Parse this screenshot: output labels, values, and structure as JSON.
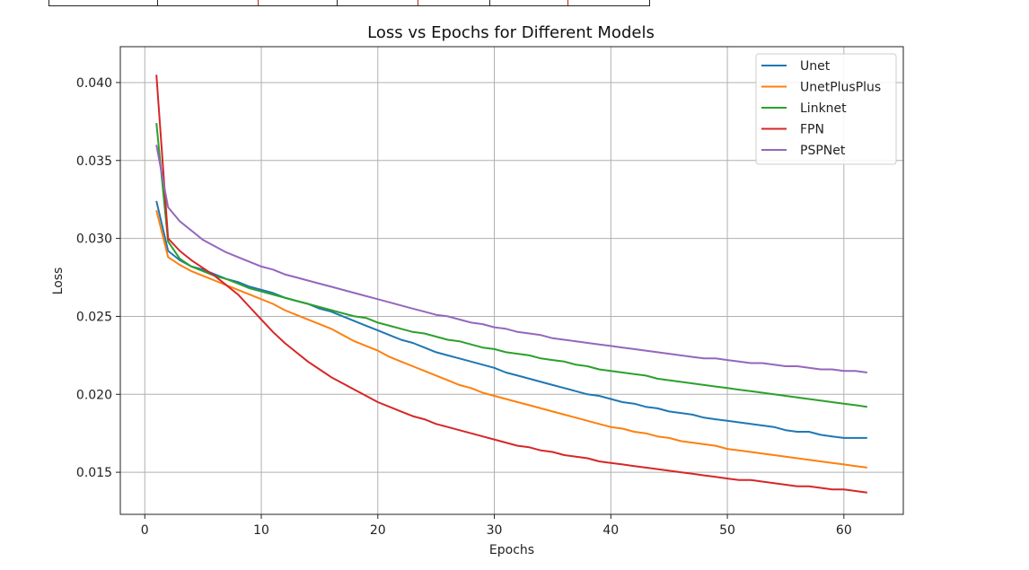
{
  "top_strip": {
    "cell_colors": [
      "#222222",
      "#222222",
      "#b22222",
      "#222222",
      "#b22222",
      "#222222",
      "#b22222"
    ]
  },
  "chart_data": {
    "type": "line",
    "title": "Loss vs Epochs for Different Models",
    "xlabel": "Epochs",
    "ylabel": "Loss",
    "xlim": [
      -2.1,
      65.1
    ],
    "ylim": [
      0.0123,
      0.0423
    ],
    "xticks": [
      0,
      10,
      20,
      30,
      40,
      50,
      60
    ],
    "yticks": [
      0.015,
      0.02,
      0.025,
      0.03,
      0.035,
      0.04
    ],
    "ytick_labels": [
      "0.015",
      "0.020",
      "0.025",
      "0.030",
      "0.035",
      "0.040"
    ],
    "grid": true,
    "legend_position": "top-right",
    "x": [
      1,
      2,
      3,
      4,
      5,
      6,
      7,
      8,
      9,
      10,
      11,
      12,
      13,
      14,
      15,
      16,
      17,
      18,
      19,
      20,
      21,
      22,
      23,
      24,
      25,
      26,
      27,
      28,
      29,
      30,
      31,
      32,
      33,
      34,
      35,
      36,
      37,
      38,
      39,
      40,
      41,
      42,
      43,
      44,
      45,
      46,
      47,
      48,
      49,
      50,
      51,
      52,
      53,
      54,
      55,
      56,
      57,
      58,
      59,
      60,
      61,
      62
    ],
    "series": [
      {
        "name": "Unet",
        "color": "#1f77b4",
        "values": [
          0.0324,
          0.0292,
          0.0286,
          0.0282,
          0.028,
          0.0277,
          0.0274,
          0.0272,
          0.0269,
          0.0267,
          0.0265,
          0.0262,
          0.026,
          0.0258,
          0.0255,
          0.0253,
          0.025,
          0.0247,
          0.0244,
          0.0241,
          0.0238,
          0.0235,
          0.0233,
          0.023,
          0.0227,
          0.0225,
          0.0223,
          0.0221,
          0.0219,
          0.0217,
          0.0214,
          0.0212,
          0.021,
          0.0208,
          0.0206,
          0.0204,
          0.0202,
          0.02,
          0.0199,
          0.0197,
          0.0195,
          0.0194,
          0.0192,
          0.0191,
          0.0189,
          0.0188,
          0.0187,
          0.0185,
          0.0184,
          0.0183,
          0.0182,
          0.0181,
          0.018,
          0.0179,
          0.0177,
          0.0176,
          0.0176,
          0.0174,
          0.0173,
          0.0172,
          0.0172,
          0.0172
        ]
      },
      {
        "name": "UnetPlusPlus",
        "color": "#ff7f0e",
        "values": [
          0.0318,
          0.0288,
          0.0283,
          0.0279,
          0.0276,
          0.0273,
          0.027,
          0.0267,
          0.0264,
          0.0261,
          0.0258,
          0.0254,
          0.0251,
          0.0248,
          0.0245,
          0.0242,
          0.0238,
          0.0234,
          0.0231,
          0.0228,
          0.0224,
          0.0221,
          0.0218,
          0.0215,
          0.0212,
          0.0209,
          0.0206,
          0.0204,
          0.0201,
          0.0199,
          0.0197,
          0.0195,
          0.0193,
          0.0191,
          0.0189,
          0.0187,
          0.0185,
          0.0183,
          0.0181,
          0.0179,
          0.0178,
          0.0176,
          0.0175,
          0.0173,
          0.0172,
          0.017,
          0.0169,
          0.0168,
          0.0167,
          0.0165,
          0.0164,
          0.0163,
          0.0162,
          0.0161,
          0.016,
          0.0159,
          0.0158,
          0.0157,
          0.0156,
          0.0155,
          0.0154,
          0.0153
        ]
      },
      {
        "name": "Linknet",
        "color": "#2ca02c",
        "values": [
          0.0374,
          0.0298,
          0.0287,
          0.0282,
          0.0279,
          0.0276,
          0.0274,
          0.0271,
          0.0268,
          0.0266,
          0.0264,
          0.0262,
          0.026,
          0.0258,
          0.0256,
          0.0254,
          0.0252,
          0.025,
          0.0249,
          0.0246,
          0.0244,
          0.0242,
          0.024,
          0.0239,
          0.0237,
          0.0235,
          0.0234,
          0.0232,
          0.023,
          0.0229,
          0.0227,
          0.0226,
          0.0225,
          0.0223,
          0.0222,
          0.0221,
          0.0219,
          0.0218,
          0.0216,
          0.0215,
          0.0214,
          0.0213,
          0.0212,
          0.021,
          0.0209,
          0.0208,
          0.0207,
          0.0206,
          0.0205,
          0.0204,
          0.0203,
          0.0202,
          0.0201,
          0.02,
          0.0199,
          0.0198,
          0.0197,
          0.0196,
          0.0195,
          0.0194,
          0.0193,
          0.0192
        ]
      },
      {
        "name": "FPN",
        "color": "#d62728",
        "values": [
          0.0405,
          0.03,
          0.0292,
          0.0286,
          0.0281,
          0.0276,
          0.027,
          0.0264,
          0.0256,
          0.0248,
          0.024,
          0.0233,
          0.0227,
          0.0221,
          0.0216,
          0.0211,
          0.0207,
          0.0203,
          0.0199,
          0.0195,
          0.0192,
          0.0189,
          0.0186,
          0.0184,
          0.0181,
          0.0179,
          0.0177,
          0.0175,
          0.0173,
          0.0171,
          0.0169,
          0.0167,
          0.0166,
          0.0164,
          0.0163,
          0.0161,
          0.016,
          0.0159,
          0.0157,
          0.0156,
          0.0155,
          0.0154,
          0.0153,
          0.0152,
          0.0151,
          0.015,
          0.0149,
          0.0148,
          0.0147,
          0.0146,
          0.0145,
          0.0145,
          0.0144,
          0.0143,
          0.0142,
          0.0141,
          0.0141,
          0.014,
          0.0139,
          0.0139,
          0.0138,
          0.0137
        ]
      },
      {
        "name": "PSPNet",
        "color": "#9467bd",
        "values": [
          0.036,
          0.032,
          0.0311,
          0.0305,
          0.0299,
          0.0295,
          0.0291,
          0.0288,
          0.0285,
          0.0282,
          0.028,
          0.0277,
          0.0275,
          0.0273,
          0.0271,
          0.0269,
          0.0267,
          0.0265,
          0.0263,
          0.0261,
          0.0259,
          0.0257,
          0.0255,
          0.0253,
          0.0251,
          0.025,
          0.0248,
          0.0246,
          0.0245,
          0.0243,
          0.0242,
          0.024,
          0.0239,
          0.0238,
          0.0236,
          0.0235,
          0.0234,
          0.0233,
          0.0232,
          0.0231,
          0.023,
          0.0229,
          0.0228,
          0.0227,
          0.0226,
          0.0225,
          0.0224,
          0.0223,
          0.0223,
          0.0222,
          0.0221,
          0.022,
          0.022,
          0.0219,
          0.0218,
          0.0218,
          0.0217,
          0.0216,
          0.0216,
          0.0215,
          0.0215,
          0.0214
        ]
      }
    ]
  }
}
